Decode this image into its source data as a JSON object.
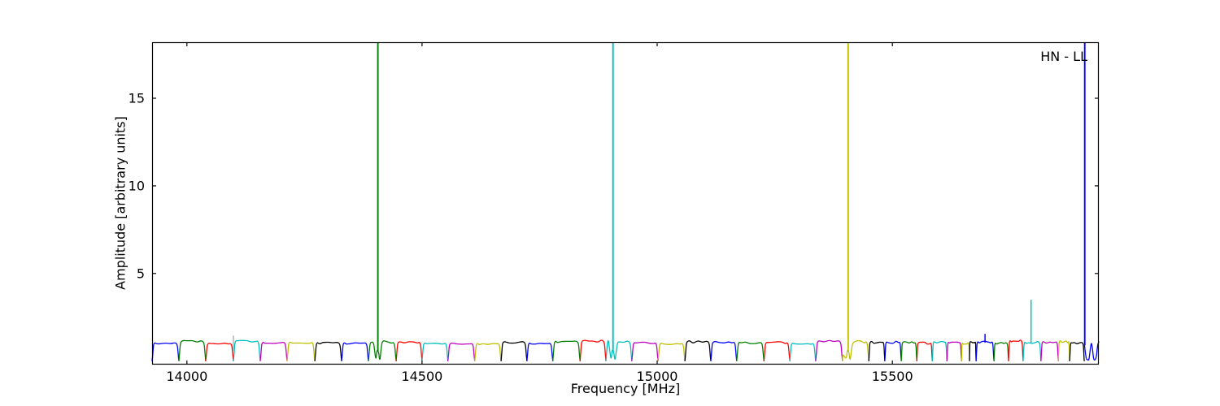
{
  "annotation": "HN - LL",
  "chart_data": {
    "type": "line",
    "title": "",
    "xlabel": "Frequency [MHz]",
    "ylabel": "Amplitude [arbitrary units]",
    "xlim": [
      13926,
      15939
    ],
    "ylim": [
      -0.2,
      18.2
    ],
    "xticks": [
      14000,
      14500,
      15000,
      15500
    ],
    "yticks": [
      5,
      10,
      15
    ],
    "grid": false,
    "legend": "none",
    "frame_color": "#000000",
    "background": "#ffffff",
    "colors": {
      "b": "#0000ff",
      "g": "#008000",
      "r": "#ff0000",
      "c": "#00bfbf",
      "m": "#bf00bf",
      "y": "#bfbf00",
      "k": "#000000",
      "gray": "#b3b3b3"
    },
    "baseline_plateau_amplitude": 1.1,
    "subbands": [
      [
        13926,
        13983,
        "b",
        null,
        null
      ],
      [
        13983,
        14040,
        "g",
        null,
        null
      ],
      [
        14040,
        14099,
        "r",
        null,
        null
      ],
      [
        14099,
        14156,
        "c",
        null,
        null
      ],
      [
        14156,
        14213,
        "m",
        null,
        null
      ],
      [
        14213,
        14272,
        "y",
        null,
        null
      ],
      [
        14272,
        14329,
        "k",
        null,
        null
      ],
      [
        14329,
        14386,
        "b",
        null,
        null
      ],
      [
        14386,
        14445,
        "g",
        [
          14406
        ],
        null
      ],
      [
        14445,
        14500,
        "r",
        null,
        null
      ],
      [
        14500,
        14555,
        "c",
        null,
        null
      ],
      [
        14555,
        14612,
        "m",
        null,
        null
      ],
      [
        14612,
        14668,
        "y",
        null,
        null
      ],
      [
        14668,
        14723,
        "k",
        null,
        null
      ],
      [
        14723,
        14778,
        "b",
        null,
        null
      ],
      [
        14778,
        14836,
        "g",
        null,
        null
      ],
      [
        14836,
        14891,
        "r",
        null,
        null
      ],
      [
        14891,
        14946,
        "c",
        [
          14906
        ],
        null
      ],
      [
        14946,
        15002,
        "m",
        null,
        null
      ],
      [
        15002,
        15059,
        "y",
        null,
        null
      ],
      [
        15059,
        15114,
        "k",
        null,
        null
      ],
      [
        15114,
        15169,
        "b",
        null,
        null
      ],
      [
        15169,
        15227,
        "g",
        null,
        null
      ],
      [
        15227,
        15282,
        "r",
        null,
        null
      ],
      [
        15282,
        15337,
        "c",
        null,
        null
      ],
      [
        15337,
        15394,
        "m",
        null,
        null
      ],
      [
        15394,
        15450,
        "y",
        [
          15406
        ],
        null
      ],
      [
        15450,
        15484,
        "k",
        null,
        null
      ],
      [
        15484,
        15519,
        "b",
        null,
        null
      ],
      [
        15519,
        15552,
        "g",
        null,
        null
      ],
      [
        15552,
        15585,
        "r",
        null,
        null
      ],
      [
        15585,
        15616,
        "c",
        null,
        null
      ],
      [
        15616,
        15647,
        "m",
        null,
        null
      ],
      [
        15647,
        15664,
        "y",
        null,
        null
      ],
      [
        15664,
        15678,
        "k",
        null,
        null
      ],
      [
        15678,
        15716,
        "b",
        null,
        null
      ],
      [
        15716,
        15747,
        "g",
        null,
        null
      ],
      [
        15747,
        15778,
        "r",
        null,
        null
      ],
      [
        15778,
        15816,
        "c",
        null,
        null
      ],
      [
        15816,
        15853,
        "m",
        null,
        null
      ],
      [
        15853,
        15877,
        "y",
        null,
        null
      ],
      [
        15877,
        15908,
        "k",
        null,
        null
      ],
      [
        15908,
        15939,
        "b",
        null,
        [
          [
            15908.5,
            0.9
          ],
          [
            15912,
            0.2
          ],
          [
            15915,
            0.08
          ],
          [
            15918,
            0.12
          ],
          [
            15921,
            0.7
          ],
          [
            15923,
            1.0
          ],
          [
            15925,
            0.8
          ],
          [
            15928,
            0.15
          ],
          [
            15931,
            0.08
          ],
          [
            15934,
            0.3
          ],
          [
            15936.5,
            0.9
          ],
          [
            15939,
            1.1
          ]
        ]
      ]
    ],
    "spikes": [
      {
        "f": 14406,
        "amp": 18.2,
        "c": "g",
        "base": 0.55,
        "clipped": true
      },
      {
        "f": 14906,
        "amp": 18.2,
        "c": "c",
        "base": 0.55,
        "clipped": true
      },
      {
        "f": 15406,
        "amp": 18.2,
        "c": "y",
        "base": 0.55,
        "clipped": true
      },
      {
        "f": 15697,
        "amp": 1.55,
        "c": "b",
        "base": 1.05,
        "clipped": false
      },
      {
        "f": 15795,
        "amp": 3.5,
        "c": "c",
        "base": 1.05,
        "clipped": false
      },
      {
        "f": 15909,
        "amp": 18.2,
        "c": "b",
        "base": 0.9,
        "clipped": true
      },
      {
        "f": 14099,
        "amp": 1.45,
        "c": "gray",
        "base": 0.6,
        "clipped": false
      }
    ]
  }
}
